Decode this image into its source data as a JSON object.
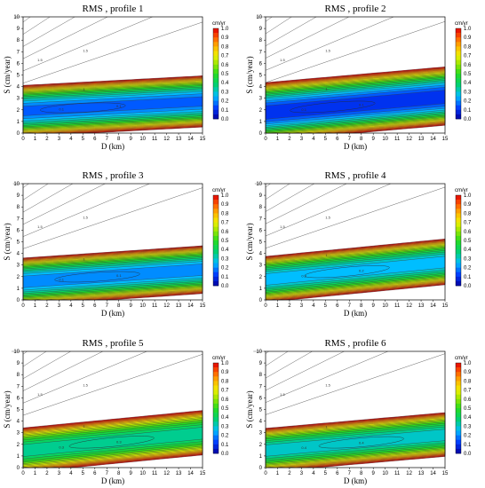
{
  "chart_data": [
    {
      "type": "contour",
      "title": "RMS , profile 1",
      "xlabel": "D (km)",
      "ylabel": "S (cm/year)",
      "xlim": [
        0,
        15
      ],
      "ylim": [
        0,
        10
      ],
      "x_ticks": [
        "0",
        "1",
        "2",
        "3",
        "4",
        "5",
        "6",
        "7",
        "8",
        "9",
        "10",
        "11",
        "12",
        "13",
        "14",
        "15"
      ],
      "y_ticks": [
        "0",
        "1",
        "2",
        "3",
        "4",
        "5",
        "6",
        "7",
        "8",
        "9",
        "10"
      ],
      "model": {
        "s_min_at_0": 1.9,
        "s_min_slope": 0.055,
        "rms_min": 0.12,
        "curv_below": 0.18,
        "curv_above": 0.18,
        "above_fade": 0.09
      },
      "contour_labels": [
        "1.5",
        "1",
        "0.1"
      ],
      "colorbar": {
        "unit": "cm/yr",
        "ticks": [
          "0.0",
          "0.1",
          "0.2",
          "0.3",
          "0.4",
          "0.5",
          "0.6",
          "0.7",
          "0.8",
          "0.9",
          "1.0"
        ]
      }
    },
    {
      "type": "contour",
      "title": "RMS , profile 2",
      "xlabel": "D (km)",
      "ylabel": "S (cm/year)",
      "xlim": [
        0,
        15
      ],
      "ylim": [
        0,
        10
      ],
      "x_ticks": [
        "0",
        "1",
        "2",
        "3",
        "4",
        "5",
        "6",
        "7",
        "8",
        "9",
        "10",
        "11",
        "12",
        "13",
        "14",
        "15"
      ],
      "y_ticks": [
        "0",
        "1",
        "2",
        "3",
        "4",
        "5",
        "6",
        "7",
        "8",
        "9",
        "10"
      ],
      "model": {
        "s_min_at_0": 1.75,
        "s_min_slope": 0.09,
        "rms_min": 0.05,
        "curv_below": 0.16,
        "curv_above": 0.14,
        "above_fade": 0.1
      },
      "contour_labels": [
        "1.5",
        "1",
        "0.1"
      ],
      "colorbar": {
        "unit": "cm/yr",
        "ticks": [
          "0.0",
          "0.1",
          "0.2",
          "0.3",
          "0.4",
          "0.5",
          "0.6",
          "0.7",
          "0.8",
          "0.9",
          "1.0"
        ]
      }
    },
    {
      "type": "contour",
      "title": "RMS , profile 3",
      "xlabel": "D (km)",
      "ylabel": "S (cm/year)",
      "xlim": [
        0,
        15
      ],
      "ylim": [
        0,
        10
      ],
      "x_ticks": [
        "0",
        "1",
        "2",
        "3",
        "4",
        "5",
        "6",
        "7",
        "8",
        "9",
        "10",
        "11",
        "12",
        "13",
        "14",
        "15"
      ],
      "y_ticks": [
        "0",
        "1",
        "2",
        "3",
        "4",
        "5",
        "6",
        "7",
        "8",
        "9",
        "10"
      ],
      "model": {
        "s_min_at_0": 1.55,
        "s_min_slope": 0.07,
        "rms_min": 0.15,
        "curv_below": 0.2,
        "curv_above": 0.2,
        "above_fade": 0.09
      },
      "contour_labels": [
        "1.5",
        "1",
        "0.1"
      ],
      "colorbar": {
        "unit": "cm/yr",
        "ticks": [
          "0.0",
          "0.1",
          "0.2",
          "0.3",
          "0.4",
          "0.5",
          "0.6",
          "0.7",
          "0.8",
          "0.9",
          "1.0"
        ]
      }
    },
    {
      "type": "contour",
      "title": "RMS , profile 4",
      "xlabel": "D (km)",
      "ylabel": "S (cm/year)",
      "xlim": [
        0,
        15
      ],
      "ylim": [
        0,
        10
      ],
      "x_ticks": [
        "0",
        "1",
        "2",
        "3",
        "4",
        "5",
        "6",
        "7",
        "8",
        "9",
        "10",
        "11",
        "12",
        "13",
        "14",
        "15"
      ],
      "y_ticks": [
        "0",
        "1",
        "2",
        "3",
        "4",
        "5",
        "6",
        "7",
        "8",
        "9",
        "10"
      ],
      "model": {
        "s_min_at_0": 1.75,
        "s_min_slope": 0.1,
        "rms_min": 0.2,
        "curv_below": 0.21,
        "curv_above": 0.2,
        "above_fade": 0.09
      },
      "contour_labels": [
        "1.5",
        "1",
        "0.2"
      ],
      "colorbar": {
        "unit": "cm/yr",
        "ticks": [
          "0.0",
          "0.1",
          "0.2",
          "0.3",
          "0.4",
          "0.5",
          "0.6",
          "0.7",
          "0.8",
          "0.9",
          "1.0"
        ]
      }
    },
    {
      "type": "contour",
      "title": "RMS , profile 5",
      "xlabel": "D (km)",
      "ylabel": "S (cm/year)",
      "xlim": [
        0,
        15
      ],
      "ylim": [
        0,
        10
      ],
      "x_ticks": [
        "0",
        "1",
        "2",
        "3",
        "4",
        "5",
        "6",
        "7",
        "8",
        "9",
        "10",
        "11",
        "12",
        "13",
        "14",
        "15"
      ],
      "y_ticks": [
        "0",
        "1",
        "2",
        "3",
        "4",
        "5",
        "6",
        "7",
        "8",
        "9",
        "10"
      ],
      "model": {
        "s_min_at_0": 1.45,
        "s_min_slope": 0.1,
        "rms_min": 0.3,
        "curv_below": 0.2,
        "curv_above": 0.18,
        "above_fade": 0.09
      },
      "contour_labels": [
        "1.5",
        "1",
        "0.3"
      ],
      "colorbar": {
        "unit": "cm/yr",
        "ticks": [
          "0.0",
          "0.1",
          "0.2",
          "0.3",
          "0.4",
          "0.5",
          "0.6",
          "0.7",
          "0.8",
          "0.9",
          "1.0"
        ]
      }
    },
    {
      "type": "contour",
      "title": "RMS , profile 6",
      "xlabel": "D (km)",
      "ylabel": "S (cm/year)",
      "xlim": [
        0,
        15
      ],
      "ylim": [
        0,
        10
      ],
      "x_ticks": [
        "0",
        "1",
        "2",
        "3",
        "4",
        "5",
        "6",
        "7",
        "8",
        "9",
        "10",
        "11",
        "12",
        "13",
        "14",
        "15"
      ],
      "y_ticks": [
        "0",
        "1",
        "2",
        "3",
        "4",
        "5",
        "6",
        "7",
        "8",
        "9",
        "10"
      ],
      "model": {
        "s_min_at_0": 1.45,
        "s_min_slope": 0.09,
        "rms_min": 0.25,
        "curv_below": 0.22,
        "curv_above": 0.2,
        "above_fade": 0.09
      },
      "contour_labels": [
        "1.5",
        "1",
        "0.4"
      ],
      "colorbar": {
        "unit": "cm/yr",
        "ticks": [
          "0.0",
          "0.1",
          "0.2",
          "0.3",
          "0.4",
          "0.5",
          "0.6",
          "0.7",
          "0.8",
          "0.9",
          "1.0"
        ]
      }
    }
  ]
}
